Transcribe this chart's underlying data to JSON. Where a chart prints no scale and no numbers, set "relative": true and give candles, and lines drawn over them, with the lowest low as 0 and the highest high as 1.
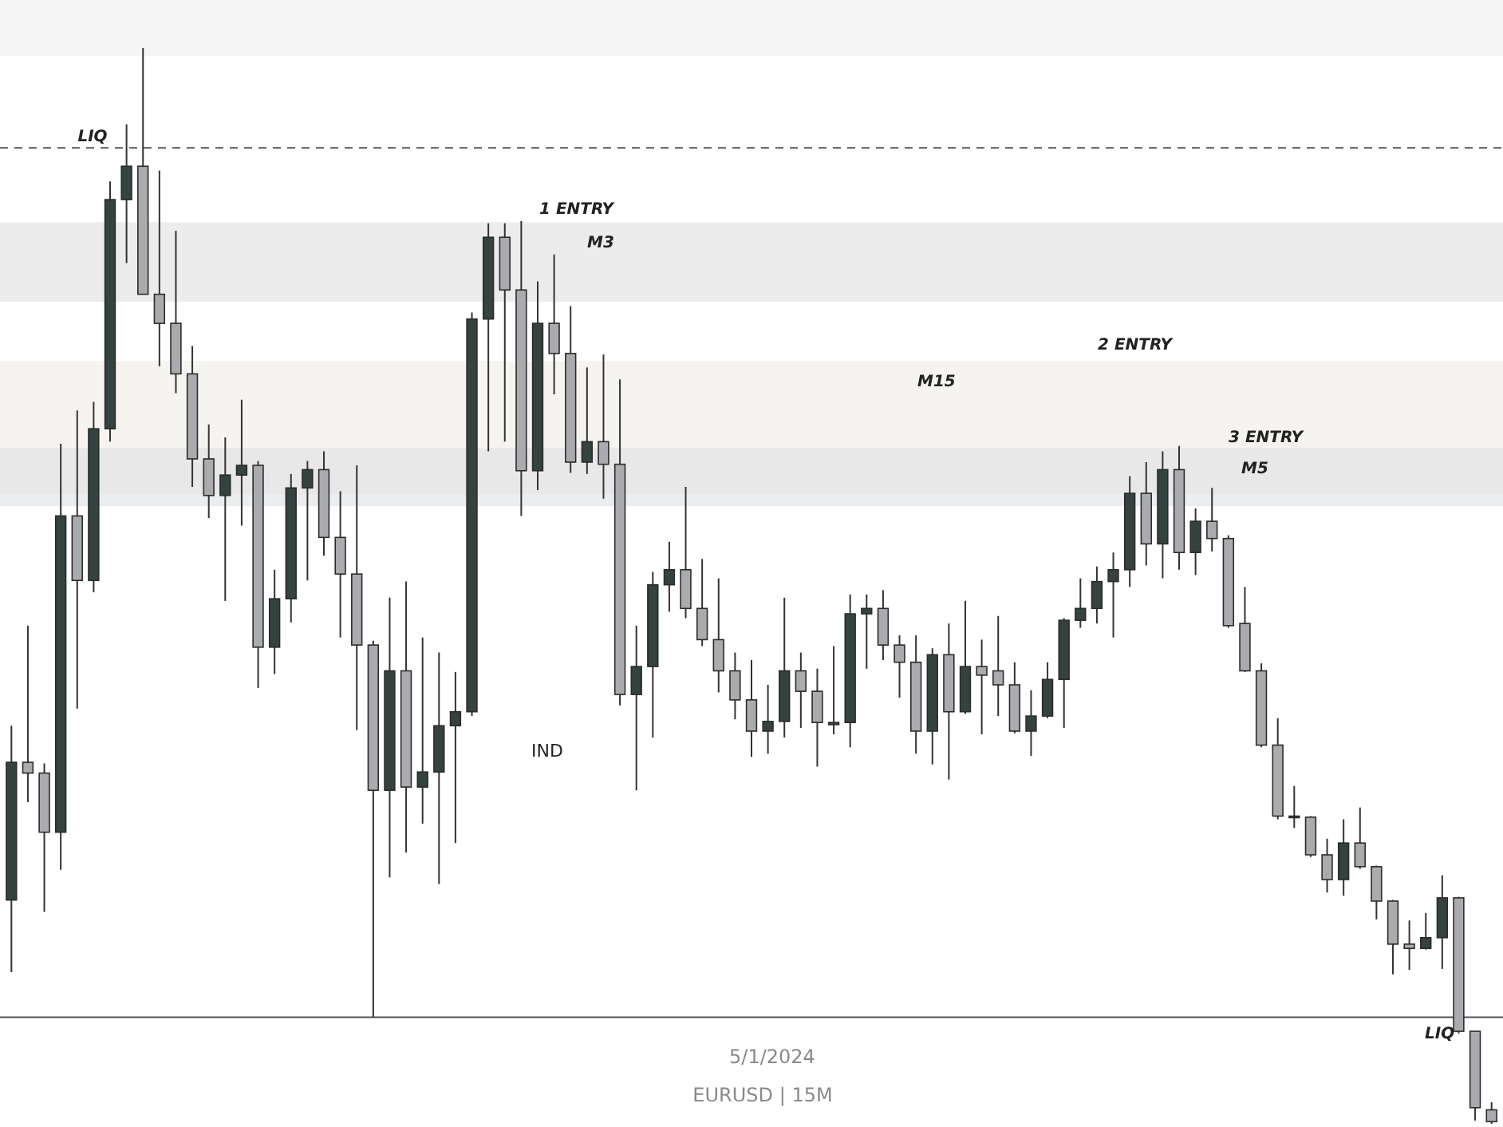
{
  "chart_data": {
    "type": "candlestick",
    "relative": true,
    "categories": [
      null,
      null,
      null,
      null,
      null,
      null,
      null,
      null,
      null,
      null,
      null,
      null,
      null,
      null,
      null,
      null,
      null,
      null,
      null,
      null,
      null,
      null,
      null,
      null,
      null,
      null,
      null,
      null,
      null,
      null,
      null,
      null,
      null,
      null,
      null,
      null,
      null,
      null,
      null,
      null,
      null,
      null,
      null,
      null,
      null,
      null,
      null,
      null,
      null,
      null,
      null,
      null,
      null,
      null,
      null,
      null,
      null,
      null,
      null,
      null,
      null,
      null,
      null,
      null,
      null,
      null,
      null,
      null,
      null,
      null,
      null,
      null,
      null,
      null,
      null,
      null,
      null,
      null,
      null,
      null,
      null,
      null,
      null,
      null,
      null,
      null,
      null,
      null,
      null,
      null,
      null
    ],
    "colors": [
      "#34433f",
      "#a9abae",
      "#a9abae",
      "#34433f",
      "#a9abae",
      "#34433f",
      "#34433f",
      "#34433f",
      "#a9abae",
      "#a9abae",
      "#a9abae",
      "#a9abae",
      "#a9abae",
      "#34433f",
      "#34433f",
      "#a9abae",
      "#34433f",
      "#34433f",
      "#34433f",
      "#a9abae",
      "#a9abae",
      "#a9abae",
      "#a9abae",
      "#34433f",
      "#a9abae",
      "#34433f",
      "#34433f",
      "#34433f",
      "#34433f",
      "#34433f",
      "#a9abae",
      "#a9abae",
      "#34433f",
      "#a9abae",
      "#a9abae",
      "#34433f",
      "#a9abae",
      "#a9abae",
      "#34433f",
      "#34433f",
      "#34433f",
      "#a9abae",
      "#a9abae",
      "#a9abae",
      "#a9abae",
      "#a9abae",
      "#34433f",
      "#34433f",
      "#a9abae",
      "#a9abae",
      "#34433f",
      "#34433f",
      "#34433f",
      "#a9abae",
      "#a9abae",
      "#a9abae",
      "#34433f",
      "#a9abae",
      "#34433f",
      "#a9abae",
      "#a9abae",
      "#a9abae",
      "#34433f",
      "#34433f",
      "#34433f",
      "#34433f",
      "#34433f",
      "#34433f",
      "#34433f",
      "#a9abae",
      "#34433f",
      "#a9abae",
      "#34433f",
      "#a9abae",
      "#a9abae",
      "#a9abae",
      "#a9abae",
      "#a9abae",
      "#34433f",
      "#a9abae",
      "#a9abae",
      "#34433f",
      "#a9abae",
      "#a9abae",
      "#a9abae",
      "#a9abae",
      "#34433f",
      "#34433f",
      "#a9abae",
      "#a9abae",
      "#a9abae"
    ],
    "ohlc": [
      [
        0.208,
        0.37,
        0.141,
        0.336
      ],
      [
        0.336,
        0.463,
        0.299,
        0.326
      ],
      [
        0.326,
        0.335,
        0.197,
        0.271
      ],
      [
        0.271,
        0.632,
        0.236,
        0.565
      ],
      [
        0.565,
        0.663,
        0.386,
        0.505
      ],
      [
        0.505,
        0.671,
        0.494,
        0.646
      ],
      [
        0.646,
        0.876,
        0.634,
        0.859
      ],
      [
        0.859,
        0.929,
        0.8,
        0.89
      ],
      [
        0.89,
        1,
        0.771,
        0.771
      ],
      [
        0.771,
        0.886,
        0.704,
        0.744
      ],
      [
        0.744,
        0.83,
        0.679,
        0.697
      ],
      [
        0.697,
        0.723,
        0.592,
        0.618
      ],
      [
        0.618,
        0.65,
        0.563,
        0.584
      ],
      [
        0.584,
        0.638,
        0.486,
        0.603
      ],
      [
        0.603,
        0.673,
        0.556,
        0.612
      ],
      [
        0.612,
        0.616,
        0.405,
        0.443
      ],
      [
        0.443,
        0.515,
        0.418,
        0.488
      ],
      [
        0.488,
        0.604,
        0.466,
        0.591
      ],
      [
        0.591,
        0.616,
        0.505,
        0.608
      ],
      [
        0.608,
        0.625,
        0.528,
        0.545
      ],
      [
        0.545,
        0.588,
        0.452,
        0.511
      ],
      [
        0.511,
        0.612,
        0.366,
        0.445
      ],
      [
        0.445,
        0.449,
        0.099,
        0.31
      ],
      [
        0.31,
        0.489,
        0.229,
        0.421
      ],
      [
        0.421,
        0.504,
        0.252,
        0.313
      ],
      [
        0.313,
        0.452,
        0.279,
        0.327
      ],
      [
        0.327,
        0.438,
        0.223,
        0.37
      ],
      [
        0.37,
        0.42,
        0.261,
        0.383
      ],
      [
        0.383,
        0.754,
        0.379,
        0.748
      ],
      [
        0.748,
        0.837,
        0.625,
        0.824
      ],
      [
        0.824,
        0.837,
        0.634,
        0.775
      ],
      [
        0.775,
        0.839,
        0.565,
        0.607
      ],
      [
        0.607,
        0.783,
        0.589,
        0.744
      ],
      [
        0.744,
        0.808,
        0.678,
        0.716
      ],
      [
        0.716,
        0.76,
        0.605,
        0.615
      ],
      [
        0.615,
        0.703,
        0.604,
        0.634
      ],
      [
        0.634,
        0.715,
        0.581,
        0.613
      ],
      [
        0.613,
        0.692,
        0.389,
        0.399
      ],
      [
        0.399,
        0.463,
        0.31,
        0.425
      ],
      [
        0.425,
        0.513,
        0.359,
        0.501
      ],
      [
        0.501,
        0.541,
        0.476,
        0.515
      ],
      [
        0.515,
        0.592,
        0.47,
        0.479
      ],
      [
        0.479,
        0.525,
        0.444,
        0.45
      ],
      [
        0.45,
        0.507,
        0.401,
        0.421
      ],
      [
        0.421,
        0.438,
        0.376,
        0.394
      ],
      [
        0.394,
        0.431,
        0.341,
        0.365
      ],
      [
        0.365,
        0.408,
        0.344,
        0.374
      ],
      [
        0.374,
        0.489,
        0.359,
        0.421
      ],
      [
        0.421,
        0.438,
        0.368,
        0.402
      ],
      [
        0.402,
        0.423,
        0.332,
        0.373
      ],
      [
        0.373,
        0.444,
        0.362,
        0.371
      ],
      [
        0.373,
        0.492,
        0.35,
        0.474
      ],
      [
        0.474,
        0.492,
        0.423,
        0.479
      ],
      [
        0.479,
        0.496,
        0.431,
        0.445
      ],
      [
        0.445,
        0.454,
        0.396,
        0.429
      ],
      [
        0.429,
        0.454,
        0.344,
        0.365
      ],
      [
        0.365,
        0.442,
        0.334,
        0.436
      ],
      [
        0.436,
        0.465,
        0.32,
        0.383
      ],
      [
        0.383,
        0.486,
        0.381,
        0.425
      ],
      [
        0.425,
        0.45,
        0.362,
        0.417
      ],
      [
        0.421,
        0.472,
        0.379,
        0.408
      ],
      [
        0.408,
        0.429,
        0.363,
        0.365
      ],
      [
        0.365,
        0.403,
        0.342,
        0.379
      ],
      [
        0.379,
        0.429,
        0.377,
        0.413
      ],
      [
        0.413,
        0.47,
        0.368,
        0.468
      ],
      [
        0.468,
        0.507,
        0.461,
        0.479
      ],
      [
        0.479,
        0.518,
        0.465,
        0.504
      ],
      [
        0.504,
        0.531,
        0.452,
        0.515
      ],
      [
        0.515,
        0.602,
        0.499,
        0.586
      ],
      [
        0.586,
        0.615,
        0.519,
        0.539
      ],
      [
        0.539,
        0.625,
        0.507,
        0.608
      ],
      [
        0.608,
        0.63,
        0.515,
        0.531
      ],
      [
        0.531,
        0.572,
        0.51,
        0.56
      ],
      [
        0.56,
        0.591,
        0.532,
        0.544
      ],
      [
        0.544,
        0.547,
        0.461,
        0.463
      ],
      [
        0.465,
        0.499,
        0.42,
        0.421
      ],
      [
        0.421,
        0.428,
        0.35,
        0.352
      ],
      [
        0.352,
        0.377,
        0.283,
        0.286
      ],
      [
        0.286,
        0.314,
        0.275,
        0.285
      ],
      [
        0.285,
        0.286,
        0.248,
        0.25
      ],
      [
        0.25,
        0.265,
        0.215,
        0.227
      ],
      [
        0.227,
        0.283,
        0.212,
        0.261
      ],
      [
        0.261,
        0.294,
        0.237,
        0.239
      ],
      [
        0.239,
        0.24,
        0.19,
        0.207
      ],
      [
        0.207,
        0.208,
        0.139,
        0.167
      ],
      [
        0.167,
        0.189,
        0.143,
        0.163
      ],
      [
        0.163,
        0.196,
        0.162,
        0.173
      ],
      [
        0.173,
        0.231,
        0.144,
        0.21
      ],
      [
        0.21,
        0.211,
        0.084,
        0.086
      ],
      [
        0.086,
        0.086,
        0.003,
        0.015
      ],
      [
        0.013,
        0.02,
        0,
        0.002
      ]
    ],
    "bands": [
      {
        "axis": "y",
        "from": 0.764,
        "to": 0.838,
        "label": "M3",
        "color": "#dcdcdf"
      },
      {
        "axis": "y",
        "from": 0.585,
        "to": 0.709,
        "label": "M15",
        "color": "#efebe5"
      },
      {
        "axis": "y",
        "from": 0.574,
        "to": 0.628,
        "label": "M5",
        "color": "#dcdee0"
      }
    ],
    "ref_lines": [
      {
        "axis": "y",
        "value": 0.907,
        "label": "LIQ",
        "line_style": "dashed"
      },
      {
        "axis": "y",
        "value": 0.099,
        "label": "LIQ",
        "line_style": "solid"
      }
    ],
    "annotations": [
      "1 ENTRY",
      "2 ENTRY",
      "3 ENTRY",
      "IND",
      "5/1/2024",
      "EURUSD | 15M"
    ],
    "grid": false
  }
}
